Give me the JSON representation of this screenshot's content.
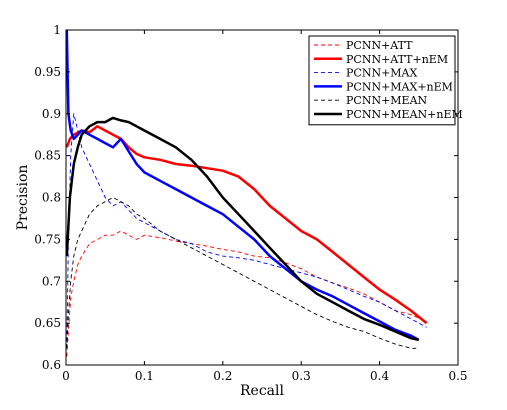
{
  "chart_data": {
    "type": "line",
    "xlabel": "Recall",
    "ylabel": "Precision",
    "xlim": [
      0,
      0.5
    ],
    "ylim": [
      0.6,
      1.0
    ],
    "xticks": [
      "0",
      "0.1",
      "0.2",
      "0.3",
      "0.4",
      "0.5"
    ],
    "yticks": [
      "0.6",
      "0.65",
      "0.7",
      "0.75",
      "0.8",
      "0.85",
      "0.9",
      "0.95",
      "1"
    ],
    "legend_position": "top-right",
    "grid": false,
    "series": [
      {
        "name": "PCNN+ATT",
        "color": "#ff0000",
        "style": "dashed",
        "points": [
          [
            0.001,
            0.61
          ],
          [
            0.003,
            0.64
          ],
          [
            0.006,
            0.68
          ],
          [
            0.01,
            0.7
          ],
          [
            0.015,
            0.72
          ],
          [
            0.02,
            0.73
          ],
          [
            0.03,
            0.745
          ],
          [
            0.04,
            0.75
          ],
          [
            0.05,
            0.755
          ],
          [
            0.06,
            0.755
          ],
          [
            0.07,
            0.76
          ],
          [
            0.08,
            0.755
          ],
          [
            0.09,
            0.75
          ],
          [
            0.1,
            0.755
          ],
          [
            0.12,
            0.752
          ],
          [
            0.14,
            0.748
          ],
          [
            0.16,
            0.745
          ],
          [
            0.18,
            0.742
          ],
          [
            0.2,
            0.738
          ],
          [
            0.22,
            0.735
          ],
          [
            0.24,
            0.73
          ],
          [
            0.26,
            0.728
          ],
          [
            0.28,
            0.722
          ],
          [
            0.3,
            0.715
          ],
          [
            0.32,
            0.705
          ],
          [
            0.34,
            0.698
          ],
          [
            0.36,
            0.692
          ],
          [
            0.38,
            0.685
          ],
          [
            0.4,
            0.675
          ],
          [
            0.42,
            0.665
          ],
          [
            0.44,
            0.66
          ],
          [
            0.46,
            0.652
          ]
        ]
      },
      {
        "name": "PCNN+ATT+nEM",
        "color": "#ff0000",
        "style": "solid",
        "points": [
          [
            0.001,
            0.86
          ],
          [
            0.005,
            0.87
          ],
          [
            0.01,
            0.875
          ],
          [
            0.02,
            0.88
          ],
          [
            0.03,
            0.878
          ],
          [
            0.04,
            0.885
          ],
          [
            0.05,
            0.88
          ],
          [
            0.06,
            0.875
          ],
          [
            0.07,
            0.87
          ],
          [
            0.08,
            0.86
          ],
          [
            0.09,
            0.852
          ],
          [
            0.1,
            0.848
          ],
          [
            0.12,
            0.845
          ],
          [
            0.14,
            0.84
          ],
          [
            0.16,
            0.838
          ],
          [
            0.18,
            0.835
          ],
          [
            0.2,
            0.832
          ],
          [
            0.22,
            0.825
          ],
          [
            0.24,
            0.81
          ],
          [
            0.26,
            0.79
          ],
          [
            0.28,
            0.775
          ],
          [
            0.3,
            0.76
          ],
          [
            0.32,
            0.75
          ],
          [
            0.34,
            0.735
          ],
          [
            0.36,
            0.72
          ],
          [
            0.38,
            0.705
          ],
          [
            0.4,
            0.69
          ],
          [
            0.42,
            0.678
          ],
          [
            0.44,
            0.665
          ],
          [
            0.46,
            0.65
          ]
        ]
      },
      {
        "name": "PCNN+MAX",
        "color": "#0000ff",
        "style": "dashed",
        "points": [
          [
            0.001,
            0.62
          ],
          [
            0.003,
            0.75
          ],
          [
            0.006,
            0.85
          ],
          [
            0.01,
            0.9
          ],
          [
            0.015,
            0.88
          ],
          [
            0.02,
            0.86
          ],
          [
            0.03,
            0.84
          ],
          [
            0.04,
            0.82
          ],
          [
            0.05,
            0.8
          ],
          [
            0.06,
            0.79
          ],
          [
            0.07,
            0.795
          ],
          [
            0.08,
            0.785
          ],
          [
            0.09,
            0.775
          ],
          [
            0.1,
            0.77
          ],
          [
            0.12,
            0.76
          ],
          [
            0.14,
            0.75
          ],
          [
            0.16,
            0.745
          ],
          [
            0.18,
            0.735
          ],
          [
            0.2,
            0.73
          ],
          [
            0.22,
            0.728
          ],
          [
            0.24,
            0.725
          ],
          [
            0.26,
            0.72
          ],
          [
            0.28,
            0.715
          ],
          [
            0.3,
            0.71
          ],
          [
            0.32,
            0.705
          ],
          [
            0.34,
            0.698
          ],
          [
            0.36,
            0.69
          ],
          [
            0.38,
            0.682
          ],
          [
            0.4,
            0.675
          ],
          [
            0.42,
            0.665
          ],
          [
            0.44,
            0.655
          ],
          [
            0.46,
            0.645
          ]
        ]
      },
      {
        "name": "PCNN+MAX+nEM",
        "color": "#0000ff",
        "style": "solid",
        "points": [
          [
            0.001,
            1.0
          ],
          [
            0.003,
            0.9
          ],
          [
            0.006,
            0.88
          ],
          [
            0.01,
            0.87
          ],
          [
            0.015,
            0.875
          ],
          [
            0.02,
            0.88
          ],
          [
            0.03,
            0.875
          ],
          [
            0.04,
            0.87
          ],
          [
            0.05,
            0.865
          ],
          [
            0.06,
            0.86
          ],
          [
            0.07,
            0.87
          ],
          [
            0.08,
            0.855
          ],
          [
            0.09,
            0.84
          ],
          [
            0.1,
            0.83
          ],
          [
            0.12,
            0.82
          ],
          [
            0.14,
            0.81
          ],
          [
            0.16,
            0.8
          ],
          [
            0.18,
            0.79
          ],
          [
            0.2,
            0.78
          ],
          [
            0.22,
            0.765
          ],
          [
            0.24,
            0.75
          ],
          [
            0.26,
            0.73
          ],
          [
            0.28,
            0.715
          ],
          [
            0.3,
            0.7
          ],
          [
            0.32,
            0.69
          ],
          [
            0.34,
            0.682
          ],
          [
            0.36,
            0.672
          ],
          [
            0.38,
            0.662
          ],
          [
            0.4,
            0.652
          ],
          [
            0.42,
            0.642
          ],
          [
            0.44,
            0.635
          ],
          [
            0.45,
            0.63
          ]
        ]
      },
      {
        "name": "PCNN+MEAN",
        "color": "#000000",
        "style": "dashed",
        "points": [
          [
            0.001,
            0.62
          ],
          [
            0.003,
            0.66
          ],
          [
            0.006,
            0.7
          ],
          [
            0.01,
            0.73
          ],
          [
            0.015,
            0.75
          ],
          [
            0.02,
            0.76
          ],
          [
            0.03,
            0.78
          ],
          [
            0.04,
            0.79
          ],
          [
            0.05,
            0.795
          ],
          [
            0.06,
            0.8
          ],
          [
            0.07,
            0.795
          ],
          [
            0.08,
            0.79
          ],
          [
            0.09,
            0.78
          ],
          [
            0.1,
            0.775
          ],
          [
            0.12,
            0.76
          ],
          [
            0.14,
            0.75
          ],
          [
            0.16,
            0.74
          ],
          [
            0.18,
            0.73
          ],
          [
            0.2,
            0.72
          ],
          [
            0.22,
            0.71
          ],
          [
            0.24,
            0.7
          ],
          [
            0.26,
            0.69
          ],
          [
            0.28,
            0.68
          ],
          [
            0.3,
            0.67
          ],
          [
            0.32,
            0.66
          ],
          [
            0.34,
            0.652
          ],
          [
            0.36,
            0.645
          ],
          [
            0.38,
            0.64
          ],
          [
            0.4,
            0.632
          ],
          [
            0.42,
            0.625
          ],
          [
            0.44,
            0.62
          ],
          [
            0.45,
            0.62
          ]
        ]
      },
      {
        "name": "PCNN+MEAN+nEM",
        "color": "#000000",
        "style": "solid",
        "points": [
          [
            0.001,
            0.73
          ],
          [
            0.005,
            0.8
          ],
          [
            0.01,
            0.84
          ],
          [
            0.015,
            0.86
          ],
          [
            0.02,
            0.875
          ],
          [
            0.03,
            0.885
          ],
          [
            0.04,
            0.89
          ],
          [
            0.05,
            0.89
          ],
          [
            0.06,
            0.895
          ],
          [
            0.07,
            0.892
          ],
          [
            0.08,
            0.89
          ],
          [
            0.09,
            0.885
          ],
          [
            0.1,
            0.88
          ],
          [
            0.12,
            0.87
          ],
          [
            0.14,
            0.86
          ],
          [
            0.16,
            0.845
          ],
          [
            0.18,
            0.825
          ],
          [
            0.2,
            0.8
          ],
          [
            0.22,
            0.78
          ],
          [
            0.24,
            0.76
          ],
          [
            0.26,
            0.74
          ],
          [
            0.28,
            0.72
          ],
          [
            0.3,
            0.7
          ],
          [
            0.32,
            0.685
          ],
          [
            0.34,
            0.675
          ],
          [
            0.36,
            0.665
          ],
          [
            0.38,
            0.655
          ],
          [
            0.4,
            0.648
          ],
          [
            0.42,
            0.64
          ],
          [
            0.44,
            0.632
          ],
          [
            0.45,
            0.63
          ]
        ]
      }
    ]
  }
}
